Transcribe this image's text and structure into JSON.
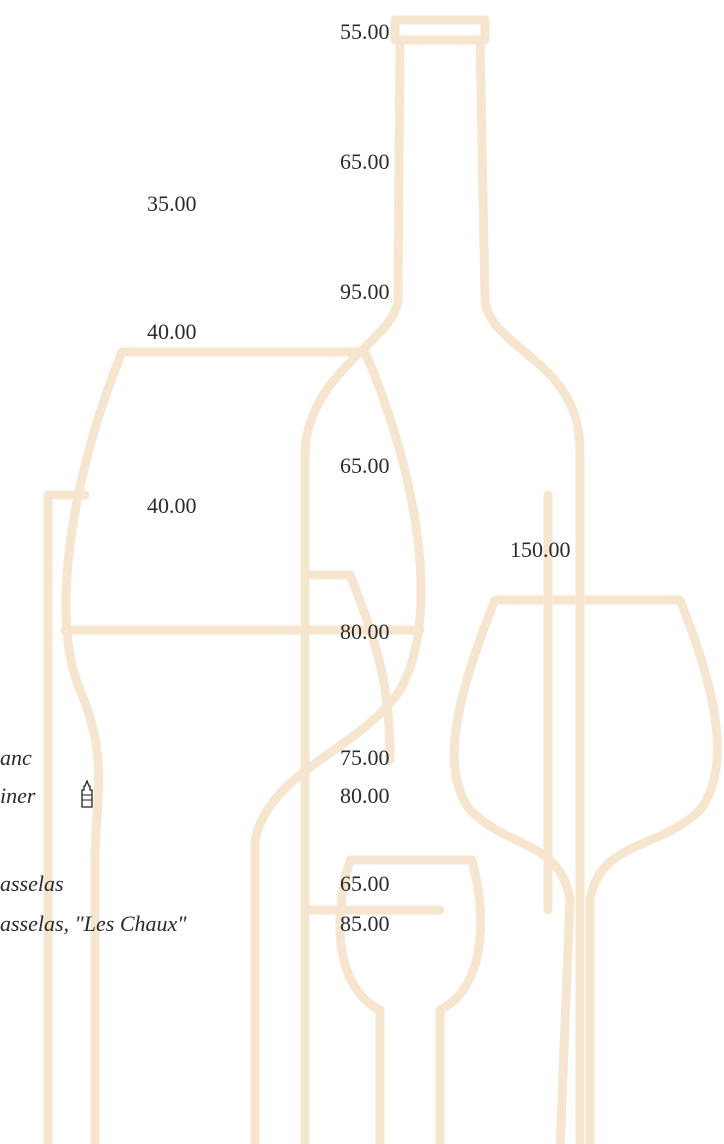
{
  "items": [
    {
      "price": "55.00"
    },
    {
      "price": "65.00"
    },
    {
      "price": "35.00"
    },
    {
      "price": "95.00"
    },
    {
      "price": "40.00"
    },
    {
      "price": "65.00"
    },
    {
      "price": "40.00"
    },
    {
      "price": "150.00"
    },
    {
      "price": "80.00"
    },
    {
      "name": "anc",
      "price": "75.00"
    },
    {
      "name": "iner",
      "price": "80.00"
    },
    {
      "name": "asselas",
      "price": "65.00"
    },
    {
      "name": "asselas, \"Les Chaux\"",
      "price": "85.00"
    }
  ]
}
